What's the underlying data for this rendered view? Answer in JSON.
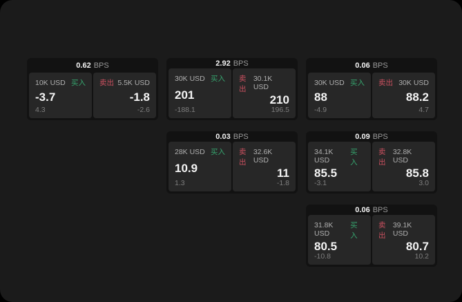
{
  "labels": {
    "buy": "买入",
    "sell": "卖出",
    "bps": "BPS"
  },
  "colors": {
    "window_bg": "#1b1b1b",
    "card_bg": "#121212",
    "panel_bg": "#272727",
    "buy_green": "#36a46e",
    "sell_red": "#c9505f"
  },
  "cards": [
    {
      "bps": "0.62",
      "buy": {
        "amount": "10K USD",
        "value": "-3.7",
        "sub": "4.3"
      },
      "sell": {
        "amount": "5.5K USD",
        "value": "-1.8",
        "sub": "-2.6"
      }
    },
    {
      "bps": "2.92",
      "buy": {
        "amount": "30K USD",
        "value": "201",
        "sub": "-188.1"
      },
      "sell": {
        "amount": "30.1K USD",
        "value": "210",
        "sub": "196.5"
      }
    },
    {
      "bps": "0.06",
      "buy": {
        "amount": "30K USD",
        "value": "88",
        "sub": "-4.9"
      },
      "sell": {
        "amount": "30K USD",
        "value": "88.2",
        "sub": "4.7"
      }
    },
    {
      "bps": "0.03",
      "buy": {
        "amount": "28K USD",
        "value": "10.9",
        "sub": "1.3"
      },
      "sell": {
        "amount": "32.6K USD",
        "value": "11",
        "sub": "-1.8"
      }
    },
    {
      "bps": "0.09",
      "buy": {
        "amount": "34.1K USD",
        "value": "85.5",
        "sub": "-3.1"
      },
      "sell": {
        "amount": "32.8K USD",
        "value": "85.8",
        "sub": "3.0"
      }
    },
    {
      "bps": "0.06",
      "buy": {
        "amount": "31.8K USD",
        "value": "80.5",
        "sub": "-10.8"
      },
      "sell": {
        "amount": "39.1K USD",
        "value": "80.7",
        "sub": "10.2"
      }
    }
  ]
}
